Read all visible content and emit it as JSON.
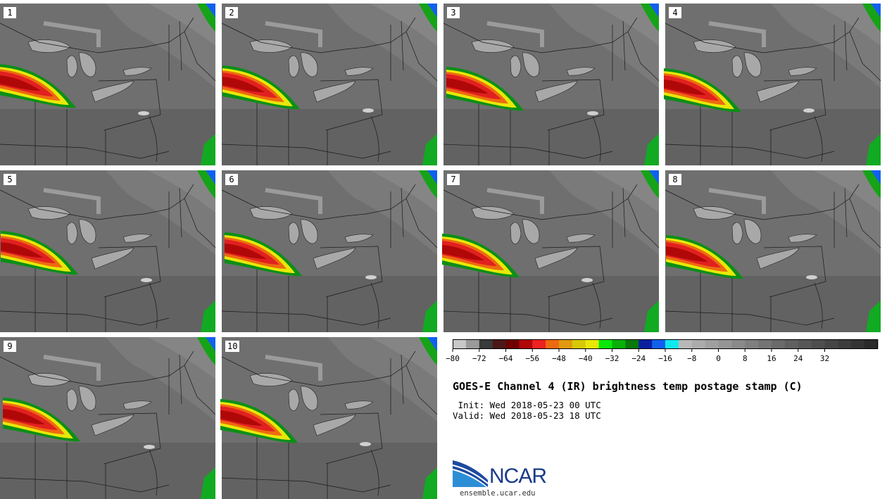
{
  "panels": [
    {
      "label": "1"
    },
    {
      "label": "2"
    },
    {
      "label": "3"
    },
    {
      "label": "4"
    },
    {
      "label": "5"
    },
    {
      "label": "6"
    },
    {
      "label": "7"
    },
    {
      "label": "8"
    },
    {
      "label": "9"
    },
    {
      "label": "10"
    }
  ],
  "colorbar": {
    "colors": [
      "#c8c8c8",
      "#9a9a9a",
      "#3a3a3a",
      "#4a1818",
      "#700000",
      "#b00808",
      "#ee2222",
      "#ee6a10",
      "#e09a10",
      "#d8c808",
      "#e8e808",
      "#08e808",
      "#08b008",
      "#087808",
      "#0820a0",
      "#1060ee",
      "#10e8f0",
      "#b8b8b8",
      "#acacac",
      "#a0a0a0",
      "#959595",
      "#8a8a8a",
      "#7f7f7f",
      "#747474",
      "#6a6a6a",
      "#606060",
      "#575757",
      "#4e4e4e",
      "#454545",
      "#3c3c3c",
      "#333333",
      "#2a2a2a"
    ],
    "ticks": [
      "−80",
      "−72",
      "−64",
      "−56",
      "−48",
      "−40",
      "−32",
      "−24",
      "−16",
      "−8",
      "0",
      "8",
      "16",
      "24",
      "32"
    ]
  },
  "title": "GOES-E Channel 4 (IR) brightness temp postage stamp (C)",
  "init": " Init: Wed 2018-05-23 00 UTC",
  "valid": "Valid: Wed 2018-05-23 18 UTC",
  "logo_text": "NCAR",
  "url": "ensemble.ucar.edu"
}
